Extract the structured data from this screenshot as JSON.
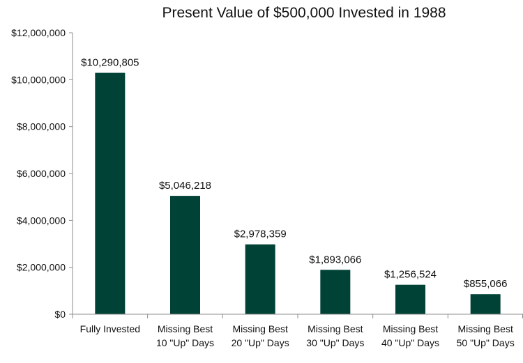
{
  "chart_data": {
    "type": "bar",
    "title": "Present Value of $500,000 Invested in 1988",
    "xlabel": "",
    "ylabel": "",
    "categories": [
      [
        "Fully Invested"
      ],
      [
        "Missing Best",
        "10 \"Up\" Days"
      ],
      [
        "Missing Best",
        "20 \"Up\" Days"
      ],
      [
        "Missing Best",
        "30 \"Up\" Days"
      ],
      [
        "Missing Best",
        "40 \"Up\" Days"
      ],
      [
        "Missing Best",
        "50 \"Up\" Days"
      ]
    ],
    "values": [
      10290805,
      5046218,
      2978359,
      1893066,
      1256524,
      855066
    ],
    "data_labels": [
      "$10,290,805",
      "$5,046,218",
      "$2,978,359",
      "$1,893,066",
      "$1,256,524",
      "$855,066"
    ],
    "ylim": [
      0,
      12000000
    ],
    "yticks": [
      0,
      2000000,
      4000000,
      6000000,
      8000000,
      10000000,
      12000000
    ],
    "ytick_labels": [
      "$0",
      "$2,000,000",
      "$4,000,000",
      "$6,000,000",
      "$8,000,000",
      "$10,000,000",
      "$12,000,000"
    ],
    "grid": false,
    "bar_color": "#004236"
  }
}
